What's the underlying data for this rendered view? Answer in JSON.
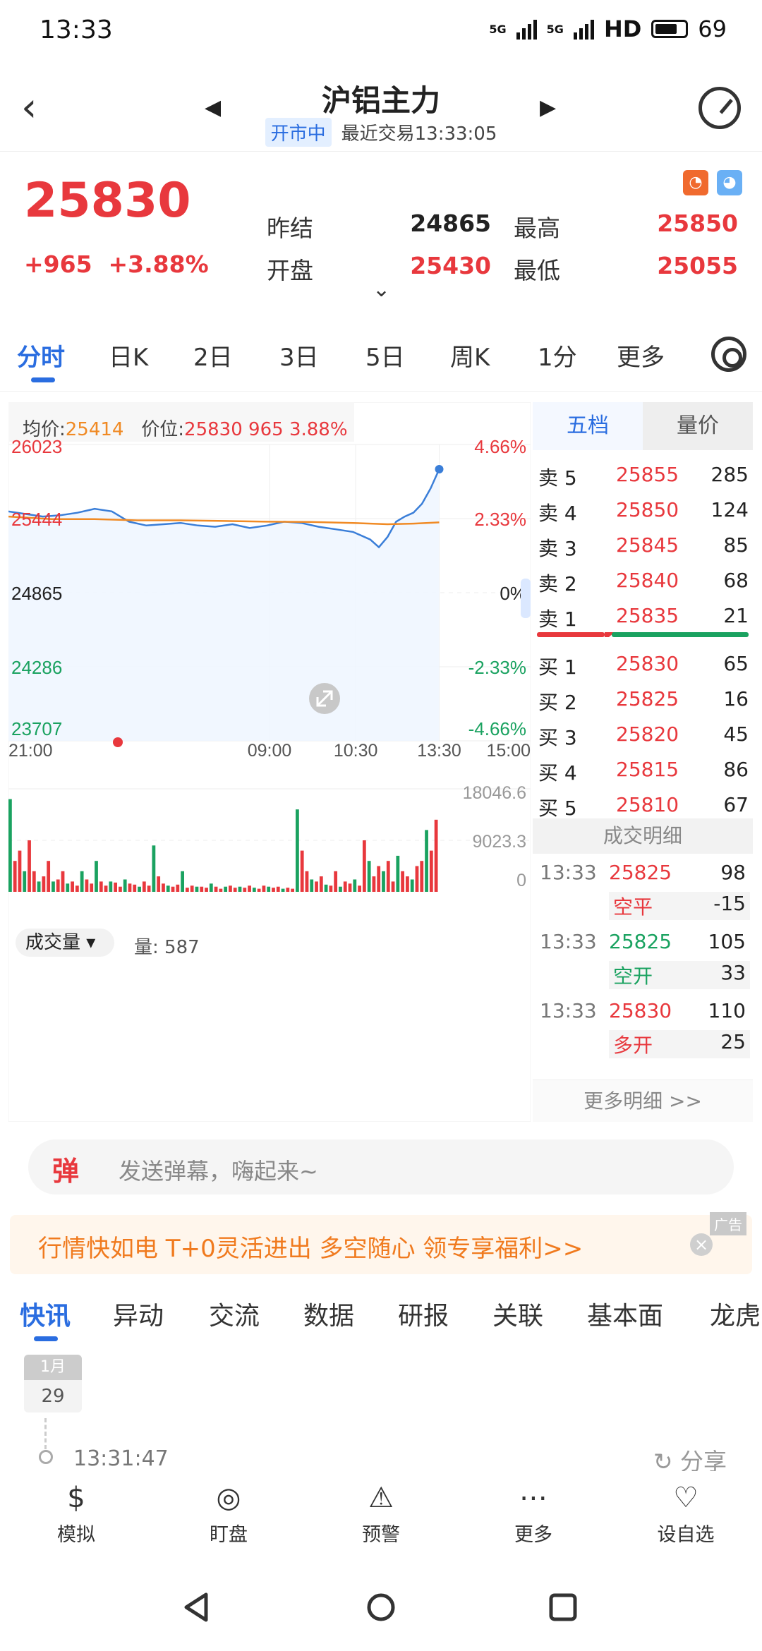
{
  "status": {
    "time": "13:33",
    "net1": "5G",
    "net2": "5G",
    "hd": "HD",
    "battery": "69"
  },
  "header": {
    "title": "沪铝主力",
    "market_status": "开市中",
    "last_trade": "最近交易13:33:05"
  },
  "quote": {
    "price": "25830",
    "change": "+965",
    "change_pct": "+3.88%",
    "prev_settle_label": "昨结",
    "prev_settle": "24865",
    "open_label": "开盘",
    "open": "25430",
    "high_label": "最高",
    "high": "25850",
    "low_label": "最低",
    "low": "25055"
  },
  "period_tabs": [
    "分时",
    "日K",
    "2日",
    "3日",
    "5日",
    "周K",
    "1分",
    "更多"
  ],
  "chart_info": {
    "avg_label": "均价:",
    "avg": "25414",
    "pos_label": "价位:",
    "pos": "25830",
    "pos_chg": "965",
    "pos_pct": "3.88%"
  },
  "chart_data": {
    "type": "line",
    "y_left_ticks": [
      "26023",
      "25444",
      "24865",
      "24286",
      "23707"
    ],
    "y_right_ticks": [
      "4.66%",
      "2.33%",
      "0%",
      "-2.33%",
      "-4.66%"
    ],
    "x_ticks": [
      "21:00",
      "09:00",
      "10:30",
      "13:30",
      "15:00"
    ],
    "ylim": [
      23707,
      26023
    ],
    "series": [
      {
        "name": "",
        "x": [
          0,
          4,
          8,
          12,
          16,
          20,
          24,
          28,
          32,
          36,
          40,
          44,
          48,
          52,
          56,
          60,
          64,
          68,
          72,
          76,
          80,
          84,
          86,
          88,
          90,
          92,
          94,
          96,
          98,
          100
        ],
        "values": [
          25500,
          25480,
          25460,
          25470,
          25490,
          25520,
          25500,
          25420,
          25390,
          25400,
          25410,
          25390,
          25380,
          25400,
          25370,
          25390,
          25420,
          25410,
          25380,
          25360,
          25340,
          25280,
          25220,
          25300,
          25420,
          25460,
          25490,
          25560,
          25680,
          25830
        ]
      },
      {
        "name": "均价",
        "x": [
          0,
          10,
          20,
          30,
          40,
          50,
          60,
          70,
          80,
          88,
          94,
          100
        ],
        "values": [
          25460,
          25440,
          25440,
          25430,
          25430,
          25425,
          25420,
          25418,
          25410,
          25400,
          25405,
          25414
        ]
      }
    ]
  },
  "volume": {
    "label": "成交量",
    "qty_label": "量: 587",
    "ticks": [
      "18046.6",
      "9023.3",
      "0"
    ],
    "bars": [
      0.9,
      0.3,
      0.4,
      0.2,
      0.5,
      0.2,
      0.1,
      0.15,
      0.3,
      0.1,
      0.12,
      0.2,
      0.08,
      0.1,
      0.06,
      0.2,
      0.12,
      0.08,
      0.3,
      0.1,
      0.06,
      0.1,
      0.09,
      0.05,
      0.12,
      0.08,
      0.07,
      0.05,
      0.1,
      0.06,
      0.45,
      0.15,
      0.08,
      0.06,
      0.05,
      0.07,
      0.2,
      0.04,
      0.06,
      0.05,
      0.05,
      0.04,
      0.08,
      0.05,
      0.03,
      0.05,
      0.06,
      0.04,
      0.05,
      0.04,
      0.06,
      0.04,
      0.03,
      0.06,
      0.05,
      0.04,
      0.05,
      0.03,
      0.04,
      0.03,
      0.8,
      0.4,
      0.2,
      0.12,
      0.1,
      0.15,
      0.07,
      0.06,
      0.2,
      0.05,
      0.1,
      0.08,
      0.12,
      0.06,
      0.5,
      0.3,
      0.15,
      0.25,
      0.2,
      0.3,
      0.1,
      0.35,
      0.2,
      0.15,
      0.12,
      0.25,
      0.3,
      0.6,
      0.4,
      0.7
    ]
  },
  "book": {
    "tab1": "五档",
    "tab2": "量价",
    "asks": [
      {
        "label": "卖 5",
        "price": "25855",
        "vol": "285"
      },
      {
        "label": "卖 4",
        "price": "25850",
        "vol": "124"
      },
      {
        "label": "卖 3",
        "price": "25845",
        "vol": "85"
      },
      {
        "label": "卖 2",
        "price": "25840",
        "vol": "68"
      },
      {
        "label": "卖 1",
        "price": "25835",
        "vol": "21"
      }
    ],
    "bids": [
      {
        "label": "买 1",
        "price": "25830",
        "vol": "65"
      },
      {
        "label": "买 2",
        "price": "25825",
        "vol": "16"
      },
      {
        "label": "买 3",
        "price": "25820",
        "vol": "45"
      },
      {
        "label": "买 4",
        "price": "25815",
        "vol": "86"
      },
      {
        "label": "买 5",
        "price": "25810",
        "vol": "67"
      }
    ],
    "deals_title": "成交明细",
    "deals": [
      {
        "time": "13:33",
        "price": "25825",
        "vol": "98",
        "kind": "空平",
        "kvol": "-15"
      },
      {
        "time": "13:33",
        "price": "25825",
        "vol": "105",
        "kind": "空开",
        "kvol": "33"
      },
      {
        "time": "13:33",
        "price": "25830",
        "vol": "110",
        "kind": "多开",
        "kvol": "25"
      }
    ],
    "more": "更多明细 >>"
  },
  "danmaku": {
    "icon": "弹",
    "placeholder": "发送弹幕，嗨起来~"
  },
  "ad": {
    "text": "行情快如电 T+0灵活进出 多空随心 领专享福利>>",
    "tag": "广告"
  },
  "news_tabs": [
    "快讯",
    "异动",
    "交流",
    "数据",
    "研报",
    "关联",
    "基本面",
    "龙虎"
  ],
  "news": {
    "month": "1月",
    "day": "29",
    "time": "13:31:47",
    "share": "分享"
  },
  "toolbar": [
    {
      "icon": "$",
      "label": "模拟"
    },
    {
      "icon": "◎",
      "label": "盯盘"
    },
    {
      "icon": "⚠",
      "label": "预警"
    },
    {
      "icon": "⋯",
      "label": "更多"
    },
    {
      "icon": "♡",
      "label": "设自选"
    }
  ]
}
